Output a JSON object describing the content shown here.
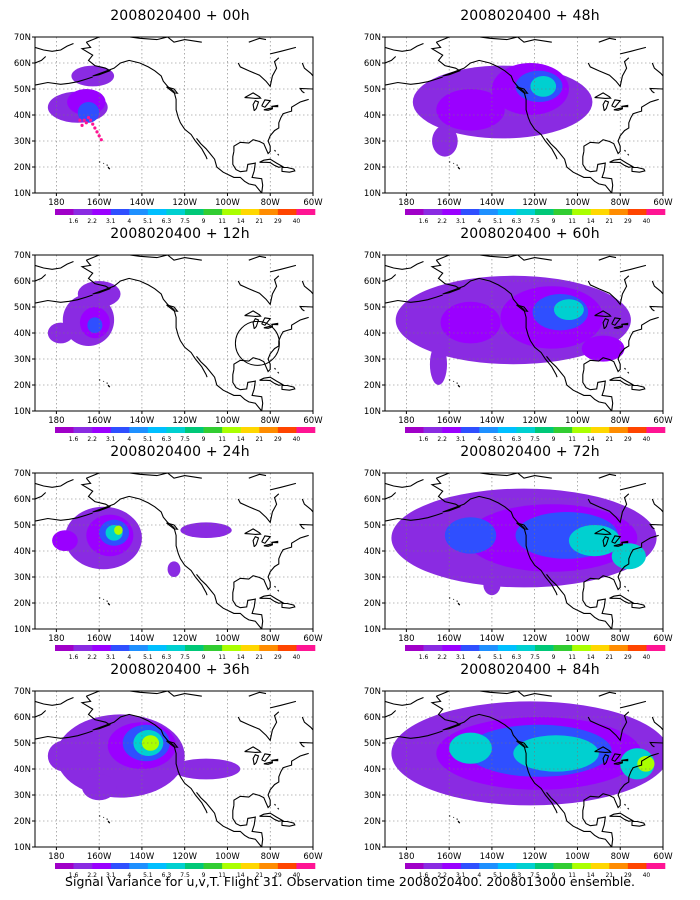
{
  "panels": [
    {
      "title": "2008020400 + 00h",
      "blobs": [
        [
          -170,
          43,
          14,
          6,
          "#8a2be2"
        ],
        [
          -166,
          45,
          9,
          5,
          "#9a00ff"
        ],
        [
          -165,
          41,
          5,
          4,
          "#2f4fff"
        ],
        [
          -163,
          55,
          10,
          4,
          "#8a2be2"
        ]
      ],
      "track": true
    },
    {
      "title": "2008020400 + 12h",
      "blobs": [
        [
          -165,
          45,
          12,
          10,
          "#8a2be2"
        ],
        [
          -162,
          44,
          7,
          6,
          "#9a00ff"
        ],
        [
          -162,
          43,
          3.5,
          3,
          "#2f4fff"
        ],
        [
          -178,
          40,
          6,
          4,
          "#8a2be2"
        ],
        [
          -160,
          55,
          10,
          5,
          "#8a2be2"
        ]
      ],
      "circle": true
    },
    {
      "title": "2008020400 + 24h",
      "blobs": [
        [
          -158,
          45,
          18,
          12,
          "#8a2be2"
        ],
        [
          -155,
          46,
          11,
          8,
          "#9a00ff"
        ],
        [
          -153,
          47,
          7,
          5,
          "#2f4fff"
        ],
        [
          -153,
          47,
          4,
          3,
          "#00d0d0"
        ],
        [
          -151,
          48,
          2,
          1.8,
          "#aaff00"
        ],
        [
          -110,
          48,
          12,
          3,
          "#8a2be2"
        ],
        [
          -125,
          33,
          3,
          3,
          "#8a2be2"
        ],
        [
          -176,
          44,
          6,
          4,
          "#9a00ff"
        ]
      ]
    },
    {
      "title": "2008020400 + 36h",
      "blobs": [
        [
          -150,
          45,
          30,
          16,
          "#8a2be2"
        ],
        [
          -140,
          49,
          16,
          9,
          "#9a00ff"
        ],
        [
          -138,
          50,
          11,
          7,
          "#2f4fff"
        ],
        [
          -137,
          50,
          7,
          5,
          "#00d0d0"
        ],
        [
          -136,
          50,
          4,
          3,
          "#aaff00"
        ],
        [
          -110,
          40,
          16,
          4,
          "#8a2be2"
        ],
        [
          -160,
          33,
          8,
          5,
          "#8a2be2"
        ],
        [
          -176,
          45,
          8,
          6,
          "#8a2be2"
        ]
      ]
    },
    {
      "title": "2008020400 + 48h",
      "blobs": [
        [
          -135,
          45,
          42,
          14,
          "#8a2be2"
        ],
        [
          -122,
          50,
          18,
          10,
          "#9a00ff"
        ],
        [
          -118,
          51,
          11,
          6,
          "#2f4fff"
        ],
        [
          -116,
          51,
          6,
          4,
          "#00d0d0"
        ],
        [
          -150,
          42,
          16,
          8,
          "#9a00ff"
        ],
        [
          -162,
          30,
          6,
          6,
          "#8a2be2"
        ]
      ]
    },
    {
      "title": "2008020400 + 60h",
      "blobs": [
        [
          -130,
          45,
          55,
          17,
          "#8a2be2"
        ],
        [
          -112,
          46,
          24,
          12,
          "#9a00ff"
        ],
        [
          -108,
          48,
          13,
          7,
          "#2f4fff"
        ],
        [
          -104,
          49,
          7,
          4,
          "#00d0d0"
        ],
        [
          -150,
          44,
          14,
          8,
          "#9a00ff"
        ],
        [
          -165,
          28,
          4,
          8,
          "#8a2be2"
        ],
        [
          -88,
          34,
          10,
          5,
          "#9a00ff"
        ]
      ]
    },
    {
      "title": "2008020400 + 72h",
      "blobs": [
        [
          -125,
          45,
          62,
          19,
          "#8a2be2"
        ],
        [
          -112,
          45,
          40,
          13,
          "#9a00ff"
        ],
        [
          -105,
          46,
          24,
          9,
          "#2f4fff"
        ],
        [
          -92,
          44,
          12,
          6,
          "#00d0d0"
        ],
        [
          -150,
          46,
          12,
          7,
          "#2f4fff"
        ],
        [
          -140,
          27,
          4,
          4,
          "#8a2be2"
        ],
        [
          -76,
          38,
          8,
          5,
          "#00d0d0"
        ]
      ]
    },
    {
      "title": "2008020400 + 84h",
      "blobs": [
        [
          -122,
          46,
          65,
          20,
          "#8a2be2"
        ],
        [
          -118,
          46,
          48,
          14,
          "#9a00ff"
        ],
        [
          -118,
          47,
          34,
          10,
          "#2f4fff"
        ],
        [
          -110,
          46,
          20,
          7,
          "#00d0d0"
        ],
        [
          -72,
          42,
          8,
          6,
          "#00d0d0"
        ],
        [
          -68,
          42,
          4,
          3,
          "#aaff00"
        ],
        [
          -150,
          48,
          10,
          6,
          "#00d0d0"
        ]
      ]
    }
  ],
  "axis": {
    "lat_ticks": [
      "10N",
      "20N",
      "30N",
      "40N",
      "50N",
      "60N",
      "70N"
    ],
    "lon_ticks": [
      "180",
      "160W",
      "140W",
      "120W",
      "100W",
      "80W",
      "60W"
    ]
  },
  "colorbar": {
    "labels": [
      "1.6",
      "2.2",
      "3.1",
      "4",
      "5.1",
      "6.3",
      "7.5",
      "9",
      "11",
      "14",
      "21",
      "29",
      "40"
    ],
    "colors": [
      "#a000c8",
      "#8a2be2",
      "#9a00ff",
      "#2f4fff",
      "#1e90ff",
      "#00bfff",
      "#00d0d0",
      "#00c878",
      "#32cd32",
      "#aaff00",
      "#ffd700",
      "#ff8c00",
      "#ff4500",
      "#ff1493"
    ]
  },
  "footer": "Signal Variance for u,v,T. Flight 31. Observation time 2008020400. 2008013000 ensemble."
}
